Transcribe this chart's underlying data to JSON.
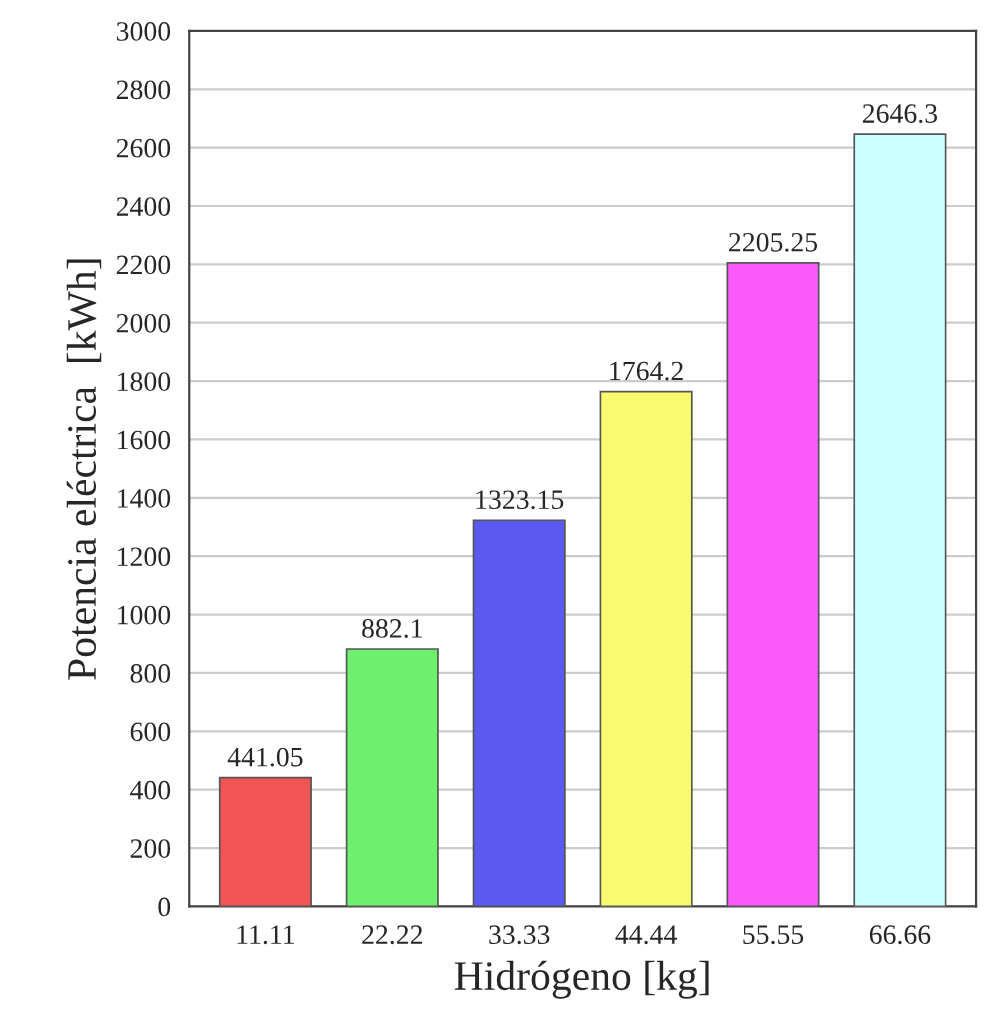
{
  "chart_data": {
    "type": "bar",
    "xlabel": "Hidrógeno [kg]",
    "ylabel": "Potencia eléctrica  [kWh]",
    "categories": [
      "11.11",
      "22.22",
      "33.33",
      "44.44",
      "55.55",
      "66.66"
    ],
    "values": [
      441.05,
      882.1,
      1323.15,
      1764.2,
      2205.25,
      2646.3
    ],
    "colors": [
      "#f05454",
      "#6ef06e",
      "#5a5af0",
      "#fafa6e",
      "#fa5afa",
      "#ccffff"
    ],
    "ylim": [
      0,
      3000
    ],
    "yticks": [
      0,
      200,
      400,
      600,
      800,
      1000,
      1200,
      1400,
      1600,
      1800,
      2000,
      2200,
      2400,
      2600,
      2800,
      3000
    ],
    "grid": "y",
    "data_labels": true
  }
}
